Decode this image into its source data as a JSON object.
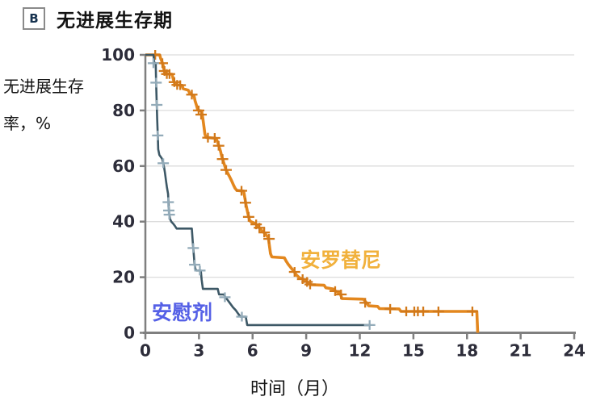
{
  "header": {
    "panel_label": "B",
    "title": "无进展生存期"
  },
  "chart_data": {
    "type": "line",
    "subtype": "kaplan-meier-step",
    "title": "无进展生存期",
    "ylabel_line1": "无进展生存",
    "ylabel_line2": "率，%",
    "xlabel": "时间（月）",
    "xlim": [
      0,
      24
    ],
    "ylim": [
      0,
      100
    ],
    "xticks": [
      0,
      3,
      6,
      9,
      12,
      15,
      18,
      21,
      24
    ],
    "yticks": [
      0,
      20,
      40,
      60,
      80,
      100
    ],
    "grid": "horizontal",
    "axis_color": "#7f7f7f",
    "grid_color": "#dcdcdc",
    "tick_label_color": "#2d2d3a",
    "series": [
      {
        "name": "安罗替尼",
        "color": "#E3871E",
        "censor_color": "#D2791A",
        "label_color": "#F1B13C",
        "points": [
          [
            0,
            100
          ],
          [
            0.8,
            100
          ],
          [
            0.87,
            98.5
          ],
          [
            0.93,
            97.5
          ],
          [
            1.0,
            96
          ],
          [
            1.05,
            94.5
          ],
          [
            1.1,
            93.2
          ],
          [
            1.5,
            93
          ],
          [
            1.55,
            91.5
          ],
          [
            1.62,
            90
          ],
          [
            1.7,
            89.3
          ],
          [
            2.05,
            89
          ],
          [
            2.12,
            87.8
          ],
          [
            2.4,
            87.3
          ],
          [
            2.5,
            86
          ],
          [
            2.72,
            85.3
          ],
          [
            2.78,
            83.5
          ],
          [
            2.85,
            82
          ],
          [
            2.92,
            80.5
          ],
          [
            2.98,
            80
          ],
          [
            3.15,
            79.8
          ],
          [
            3.22,
            77
          ],
          [
            3.28,
            74
          ],
          [
            3.33,
            71.5
          ],
          [
            3.4,
            70.3
          ],
          [
            3.95,
            70
          ],
          [
            4.05,
            68.5
          ],
          [
            4.12,
            67
          ],
          [
            4.2,
            65.5
          ],
          [
            4.27,
            63.5
          ],
          [
            4.35,
            62
          ],
          [
            4.42,
            60.5
          ],
          [
            4.5,
            58.8
          ],
          [
            4.6,
            57.5
          ],
          [
            4.7,
            56.3
          ],
          [
            4.82,
            54.8
          ],
          [
            4.92,
            53.3
          ],
          [
            5.02,
            52
          ],
          [
            5.12,
            51.2
          ],
          [
            5.5,
            51
          ],
          [
            5.57,
            48.5
          ],
          [
            5.63,
            46
          ],
          [
            5.7,
            44
          ],
          [
            5.77,
            42
          ],
          [
            5.83,
            40.5
          ],
          [
            5.9,
            40
          ],
          [
            6.15,
            39.3
          ],
          [
            6.3,
            38.3
          ],
          [
            6.45,
            37.2
          ],
          [
            6.6,
            36.3
          ],
          [
            6.75,
            35.3
          ],
          [
            6.88,
            34.3
          ],
          [
            6.94,
            31.5
          ],
          [
            7.0,
            28.5
          ],
          [
            7.08,
            27.3
          ],
          [
            7.78,
            27
          ],
          [
            7.88,
            25.8
          ],
          [
            8.0,
            24.6
          ],
          [
            8.15,
            23.4
          ],
          [
            8.3,
            22.2
          ],
          [
            8.45,
            20.8
          ],
          [
            8.62,
            19.8
          ],
          [
            8.85,
            19.2
          ],
          [
            9.05,
            18.4
          ],
          [
            9.15,
            17.6
          ],
          [
            9.3,
            17.3
          ],
          [
            10.0,
            17.1
          ],
          [
            10.1,
            16.2
          ],
          [
            10.5,
            15.8
          ],
          [
            10.62,
            15.1
          ],
          [
            10.9,
            14.2
          ],
          [
            11.0,
            12.3
          ],
          [
            12.2,
            12.1
          ],
          [
            12.32,
            11.2
          ],
          [
            12.5,
            9.7
          ],
          [
            13.0,
            9.5
          ],
          [
            13.1,
            8.7
          ],
          [
            14.2,
            8.6
          ],
          [
            14.3,
            7.7
          ],
          [
            18.55,
            7.7
          ],
          [
            18.6,
            0
          ]
        ],
        "censors": [
          [
            0.55,
            100
          ],
          [
            0.95,
            97
          ],
          [
            1.07,
            94.2
          ],
          [
            1.2,
            93.1
          ],
          [
            1.35,
            93.1
          ],
          [
            1.62,
            90.2
          ],
          [
            1.78,
            89.2
          ],
          [
            1.95,
            89.1
          ],
          [
            2.6,
            85.7
          ],
          [
            2.98,
            80
          ],
          [
            3.12,
            78.5
          ],
          [
            3.5,
            70.2
          ],
          [
            3.88,
            70.1
          ],
          [
            4.1,
            67.3
          ],
          [
            4.32,
            62.5
          ],
          [
            4.52,
            58.6
          ],
          [
            5.38,
            51.1
          ],
          [
            5.6,
            46.8
          ],
          [
            5.78,
            41.7
          ],
          [
            6.2,
            39
          ],
          [
            6.38,
            37.8
          ],
          [
            6.65,
            36.1
          ],
          [
            6.92,
            33.8
          ],
          [
            8.35,
            21.9
          ],
          [
            8.8,
            19.3
          ],
          [
            9.05,
            18.3
          ],
          [
            9.22,
            17.4
          ],
          [
            10.62,
            15
          ],
          [
            10.95,
            13.8
          ],
          [
            12.3,
            10.8
          ],
          [
            13.7,
            8.6
          ],
          [
            14.6,
            7.7
          ],
          [
            15.05,
            7.7
          ],
          [
            15.25,
            7.7
          ],
          [
            15.55,
            7.7
          ],
          [
            16.4,
            7.7
          ],
          [
            18.3,
            7.7
          ]
        ]
      },
      {
        "name": "安慰剂",
        "color": "#3D5866",
        "censor_color": "#93ABB9",
        "label_color": "#5560E6",
        "points": [
          [
            0,
            100
          ],
          [
            0.45,
            100
          ],
          [
            0.5,
            97
          ],
          [
            0.58,
            97
          ],
          [
            0.6,
            90
          ],
          [
            0.63,
            84
          ],
          [
            0.66,
            77
          ],
          [
            0.7,
            70
          ],
          [
            0.72,
            66
          ],
          [
            0.78,
            64
          ],
          [
            0.95,
            62.5
          ],
          [
            1.0,
            61
          ],
          [
            1.05,
            59.5
          ],
          [
            1.1,
            57.5
          ],
          [
            1.15,
            55
          ],
          [
            1.2,
            52.5
          ],
          [
            1.27,
            50
          ],
          [
            1.3,
            46
          ],
          [
            1.33,
            43
          ],
          [
            1.38,
            41
          ],
          [
            1.45,
            40
          ],
          [
            1.55,
            39.3
          ],
          [
            1.65,
            38.5
          ],
          [
            1.75,
            37.5
          ],
          [
            2.6,
            37.5
          ],
          [
            2.65,
            33
          ],
          [
            2.7,
            29
          ],
          [
            2.75,
            25
          ],
          [
            2.8,
            23
          ],
          [
            2.85,
            22.4
          ],
          [
            3.1,
            22.4
          ],
          [
            3.15,
            19
          ],
          [
            3.22,
            15.8
          ],
          [
            4.05,
            15.8
          ],
          [
            4.12,
            13.8
          ],
          [
            4.4,
            13.8
          ],
          [
            4.48,
            12.8
          ],
          [
            4.6,
            11.8
          ],
          [
            4.75,
            10.5
          ],
          [
            4.9,
            9.2
          ],
          [
            5.05,
            8.2
          ],
          [
            5.2,
            6.8
          ],
          [
            5.32,
            5.8
          ],
          [
            5.62,
            5.8
          ],
          [
            5.7,
            2.8
          ],
          [
            12.55,
            2.8
          ]
        ],
        "censors": [
          [
            0.45,
            97
          ],
          [
            0.6,
            90
          ],
          [
            0.64,
            82
          ],
          [
            0.69,
            71
          ],
          [
            1.0,
            61
          ],
          [
            1.28,
            47
          ],
          [
            1.31,
            44
          ],
          [
            1.34,
            42.5
          ],
          [
            2.68,
            30.5
          ],
          [
            2.76,
            24.5
          ],
          [
            3.05,
            22.4
          ],
          [
            4.45,
            12.8
          ],
          [
            5.4,
            5.8
          ],
          [
            12.55,
            2.8
          ]
        ]
      }
    ]
  }
}
